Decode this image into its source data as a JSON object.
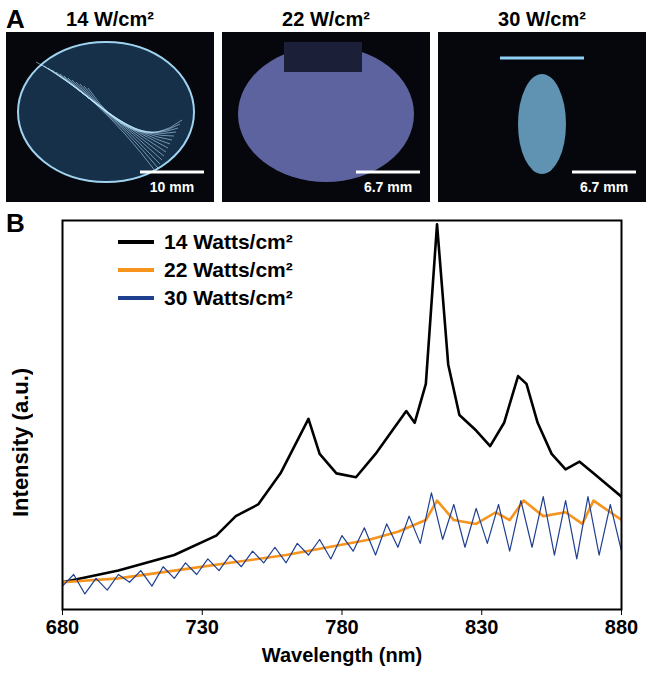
{
  "panel_a": {
    "panel_label": "A",
    "images": [
      {
        "title": "14 W/cm²",
        "scale_bar": "10 mm"
      },
      {
        "title": "22 W/cm²",
        "scale_bar": "6.7 mm"
      },
      {
        "title": "30 W/cm²",
        "scale_bar": "6.7 mm"
      }
    ]
  },
  "chart_data": {
    "panel_label": "B",
    "type": "line",
    "xlabel": "Wavelength (nm)",
    "ylabel": "Intensity (a.u.)",
    "xlim": [
      680,
      880
    ],
    "xticks": [
      680,
      730,
      780,
      830,
      880
    ],
    "ylim": [
      0,
      1
    ],
    "tick_labels": "x",
    "legend": "top-left",
    "series": [
      {
        "name": "14 Watts/cm²",
        "color": "#000000",
        "x": [
          680,
          700,
          720,
          735,
          742,
          750,
          758,
          768,
          772,
          778,
          785,
          792,
          798,
          803,
          806,
          810,
          814,
          818,
          822,
          828,
          833,
          838,
          843,
          846,
          850,
          855,
          860,
          865,
          870,
          875,
          880
        ],
        "values": [
          0.07,
          0.1,
          0.14,
          0.19,
          0.24,
          0.27,
          0.35,
          0.49,
          0.4,
          0.35,
          0.34,
          0.4,
          0.46,
          0.51,
          0.48,
          0.58,
          0.99,
          0.63,
          0.5,
          0.46,
          0.42,
          0.48,
          0.6,
          0.58,
          0.48,
          0.4,
          0.36,
          0.38,
          0.35,
          0.32,
          0.29
        ]
      },
      {
        "name": "22 Watts/cm²",
        "color": "#f7941d",
        "x": [
          680,
          700,
          720,
          740,
          760,
          775,
          790,
          800,
          810,
          814,
          820,
          828,
          835,
          840,
          845,
          852,
          860,
          866,
          870,
          876,
          880
        ],
        "values": [
          0.07,
          0.08,
          0.1,
          0.12,
          0.14,
          0.16,
          0.18,
          0.2,
          0.23,
          0.28,
          0.23,
          0.22,
          0.25,
          0.23,
          0.28,
          0.24,
          0.25,
          0.22,
          0.28,
          0.25,
          0.23
        ]
      },
      {
        "name": "30 Watts/cm²",
        "color": "#1f3f8f",
        "x": [
          680,
          684,
          688,
          692,
          696,
          700,
          704,
          708,
          712,
          716,
          720,
          724,
          728,
          732,
          736,
          740,
          744,
          748,
          752,
          756,
          760,
          764,
          768,
          772,
          776,
          780,
          784,
          788,
          792,
          796,
          800,
          804,
          808,
          812,
          816,
          820,
          824,
          828,
          832,
          836,
          840,
          844,
          848,
          852,
          856,
          860,
          864,
          868,
          872,
          876,
          880
        ],
        "values": [
          0.06,
          0.09,
          0.04,
          0.08,
          0.05,
          0.09,
          0.07,
          0.1,
          0.06,
          0.11,
          0.08,
          0.12,
          0.09,
          0.13,
          0.1,
          0.14,
          0.11,
          0.15,
          0.12,
          0.16,
          0.12,
          0.17,
          0.14,
          0.18,
          0.13,
          0.19,
          0.15,
          0.21,
          0.14,
          0.22,
          0.16,
          0.24,
          0.17,
          0.3,
          0.18,
          0.27,
          0.16,
          0.26,
          0.17,
          0.27,
          0.15,
          0.28,
          0.16,
          0.29,
          0.14,
          0.28,
          0.13,
          0.29,
          0.14,
          0.27,
          0.15
        ]
      }
    ]
  }
}
